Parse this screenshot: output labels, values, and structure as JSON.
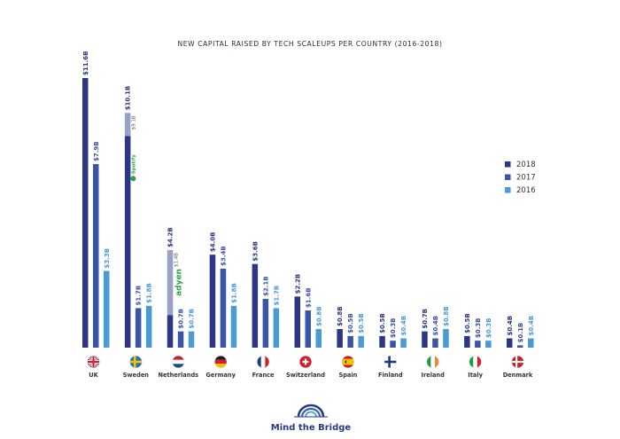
{
  "chart_data": {
    "type": "bar",
    "title": "NEW CAPITAL RAISED BY TECH SCALEUPS PER COUNTRY (2016-2018)",
    "categories": [
      "UK",
      "Sweden",
      "Netherlands",
      "Germany",
      "France",
      "Switzerland",
      "Spain",
      "Finland",
      "Ireland",
      "Italy",
      "Denmark"
    ],
    "series": [
      {
        "name": "2018",
        "color": "#2b3784",
        "values": [
          11.6,
          10.1,
          4.2,
          4.0,
          3.6,
          2.2,
          0.8,
          0.5,
          0.7,
          0.5,
          0.4
        ],
        "labels": [
          "$11.6B",
          "$10.1B",
          "$4.2B",
          "$4.0B",
          "$3.6B",
          "$2.2B",
          "$0.8B",
          "$0.5B",
          "$0.7B",
          "$0.5B",
          "$0.4B"
        ]
      },
      {
        "name": "2017",
        "color": "#3a55a8",
        "values": [
          7.9,
          1.7,
          0.7,
          3.4,
          2.1,
          1.6,
          0.5,
          0.3,
          0.4,
          0.3,
          0.1
        ],
        "labels": [
          "$7.9B",
          "$1.7B",
          "$0.7B",
          "$3.4B",
          "$2.1B",
          "$1.6B",
          "$0.5B",
          "$0.3B",
          "$0.4B",
          "$0.3B",
          "$0.1B"
        ]
      },
      {
        "name": "2016",
        "color": "#4a9ad6",
        "values": [
          3.3,
          1.8,
          0.7,
          1.8,
          1.7,
          0.8,
          0.5,
          0.4,
          0.8,
          0.3,
          0.4
        ],
        "labels": [
          "$3.3B",
          "$1.8B",
          "$0.7B",
          "$1.8B",
          "$1.7B",
          "$0.8B",
          "$0.5B",
          "$0.4B",
          "$0.8B",
          "$0.3B",
          "$0.4B"
        ]
      }
    ],
    "highlights": [
      {
        "category": "Sweden",
        "series": "2018",
        "value": 9.1,
        "label": "$9.1B",
        "logo_text": "Spotify",
        "color": "#9aa0c8"
      },
      {
        "category": "Netherlands",
        "series": "2018",
        "value": 1.4,
        "label": "$1.4B",
        "logo_text": "adyen",
        "color": "#9aa0c8"
      }
    ],
    "ylim": [
      0,
      12
    ],
    "grid": false,
    "legend": "right"
  },
  "legend_labels": [
    "2018",
    "2017",
    "2016"
  ],
  "flags": [
    "uk-flag-icon",
    "sweden-flag-icon",
    "netherlands-flag-icon",
    "germany-flag-icon",
    "france-flag-icon",
    "switzerland-flag-icon",
    "spain-flag-icon",
    "finland-flag-icon",
    "ireland-flag-icon",
    "italy-flag-icon",
    "denmark-flag-icon"
  ],
  "footer": {
    "brand": "Mind the Bridge",
    "logo_icon": "bridge-arc-icon"
  }
}
